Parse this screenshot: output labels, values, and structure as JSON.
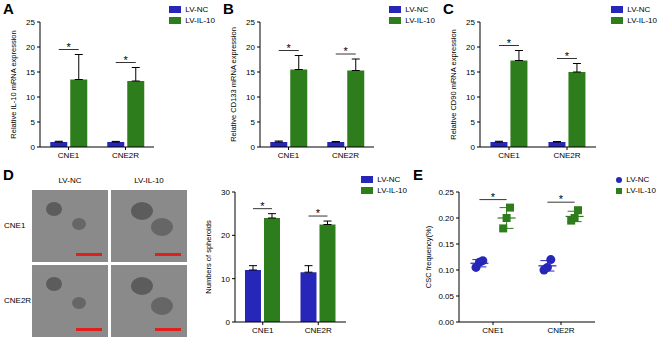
{
  "chart_data": [
    {
      "panel": "A",
      "type": "bar",
      "categories": [
        "CNE1",
        "CNE2R"
      ],
      "y_label": "Relative IL-10 mRNA expression",
      "series": [
        {
          "name": "LV-NC",
          "color": "#2626b8",
          "values": [
            1,
            1
          ],
          "errors": [
            0.15,
            0.12
          ]
        },
        {
          "name": "LV-IL-10",
          "color": "#2e7d1c",
          "values": [
            13.5,
            13.2
          ],
          "errors": [
            5,
            2.7
          ]
        }
      ],
      "annotations": [
        "*",
        "*"
      ],
      "ylim": [
        0,
        25
      ],
      "yticks": [
        0,
        5,
        10,
        15,
        20,
        25
      ],
      "legend": "upper right"
    },
    {
      "panel": "B",
      "type": "bar",
      "categories": [
        "CNE1",
        "CNE2R"
      ],
      "y_label": "Relative CD133 mRNA expression",
      "series": [
        {
          "name": "LV-NC",
          "color": "#2626b8",
          "values": [
            1,
            1
          ],
          "errors": [
            0.2,
            0.1
          ]
        },
        {
          "name": "LV-IL-10",
          "color": "#2e7d1c",
          "values": [
            15.5,
            15.3
          ],
          "errors": [
            2.8,
            2.3
          ]
        }
      ],
      "annotations": [
        "*",
        "*"
      ],
      "ylim": [
        0,
        25
      ],
      "yticks": [
        0,
        5,
        10,
        15,
        20,
        25
      ],
      "legend": "upper right"
    },
    {
      "panel": "C",
      "type": "bar",
      "categories": [
        "CNE1",
        "CNE2R"
      ],
      "y_label": "Relative CD90 mRNA expression",
      "series": [
        {
          "name": "LV-NC",
          "color": "#2626b8",
          "values": [
            1,
            1
          ],
          "errors": [
            0.15,
            0.1
          ]
        },
        {
          "name": "LV-IL-10",
          "color": "#2e7d1c",
          "values": [
            17.3,
            15
          ],
          "errors": [
            2,
            1.7
          ]
        }
      ],
      "annotations": [
        "*",
        "*"
      ],
      "ylim": [
        0,
        25
      ],
      "yticks": [
        0,
        5,
        10,
        15,
        20,
        25
      ],
      "legend": "upper right"
    },
    {
      "panel": "D",
      "type": "bar",
      "image_labels": {
        "columns": [
          "LV-NC",
          "LV-IL-10"
        ],
        "rows": [
          "CNE1",
          "CNE2R"
        ]
      },
      "categories": [
        "CNE1",
        "CNE2R"
      ],
      "y_label": "Numbers of spheroids",
      "series": [
        {
          "name": "LV-NC",
          "color": "#2626b8",
          "values": [
            12,
            11.5
          ],
          "errors": [
            1,
            1.5
          ]
        },
        {
          "name": "LV-IL-10",
          "color": "#2e7d1c",
          "values": [
            24,
            22.5
          ],
          "errors": [
            1,
            0.8
          ]
        }
      ],
      "annotations": [
        "*",
        "*"
      ],
      "ylim": [
        0,
        30
      ],
      "yticks": [
        0,
        10,
        20,
        30
      ],
      "legend": "upper right"
    },
    {
      "panel": "E",
      "type": "scatter",
      "categories": [
        "CNE1",
        "CNE2R"
      ],
      "y_label": "CSC frequency(%)",
      "series": [
        {
          "name": "LV-NC",
          "color": "#2626b8",
          "marker": "circle",
          "points": [
            [
              0.105,
              0.115,
              0.118
            ],
            [
              0.1,
              0.105,
              0.12
            ]
          ],
          "means": [
            0.113,
            0.108
          ],
          "errors": [
            0.007,
            0.01
          ]
        },
        {
          "name": "LV-IL-10",
          "color": "#2e7d1c",
          "marker": "square",
          "points": [
            [
              0.18,
              0.2,
              0.22
            ],
            [
              0.195,
              0.2,
              0.215
            ]
          ],
          "means": [
            0.2,
            0.203
          ],
          "errors": [
            0.02,
            0.01
          ]
        }
      ],
      "annotations": [
        "*",
        "*"
      ],
      "ylim": [
        0,
        0.25
      ],
      "yticks": [
        {
          "value": 0,
          "label": "0.00"
        },
        {
          "value": 0.05,
          "label": "0.05"
        },
        {
          "value": 0.1,
          "label": "0.10"
        },
        {
          "value": 0.15,
          "label": "0.15"
        },
        {
          "value": 0.2,
          "label": "0.20"
        },
        {
          "value": 0.25,
          "label": "0.25"
        }
      ],
      "legend": "upper right"
    }
  ]
}
